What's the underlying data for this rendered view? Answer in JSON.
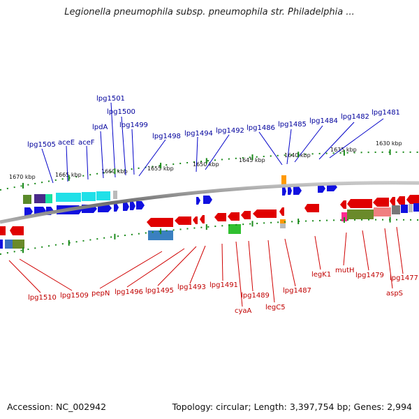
{
  "title": "Legionella pneumophila subsp. pneumophila str. Philadelphia ...",
  "footer": {
    "accession": "Accession: NC_002942",
    "summary": "Topology: circular; Length: 3,397,754 bp; Genes: 2,994"
  },
  "scale_labels": [
    "1670 kbp",
    "1665 kbp",
    "1660 kbp",
    "1655 kbp",
    "1650 kbp",
    "1645 kbp",
    "1640 kbp",
    "1635 kbp",
    "1630 kbp"
  ],
  "top_labels": [
    "lpg1505",
    "aceE",
    "aceF",
    "lpdA",
    "lpg1501",
    "lpg1500",
    "lpg1499",
    "lpg1498",
    "lpg1494",
    "lpg1492",
    "lpg1486",
    "lpg1485",
    "lpg1484",
    "lpg1482",
    "lpg1481"
  ],
  "bottom_labels": [
    "lpg1510",
    "lpg1509",
    "pepN",
    "lpg1496",
    "lpg1495",
    "lpg1493",
    "lpg1491",
    "cyaA",
    "lpg1489",
    "legC5",
    "lpg1487",
    "legK1",
    "mutH",
    "lpg1479",
    "aspS",
    "lpg1477"
  ],
  "colors": {
    "top_label": "#00009c",
    "bottom_label": "#c00000",
    "forward_gene": "#1010e0",
    "reverse_gene": "#e00000",
    "tick": "#1a8a1a",
    "backbone": "#7a7a7a"
  }
}
